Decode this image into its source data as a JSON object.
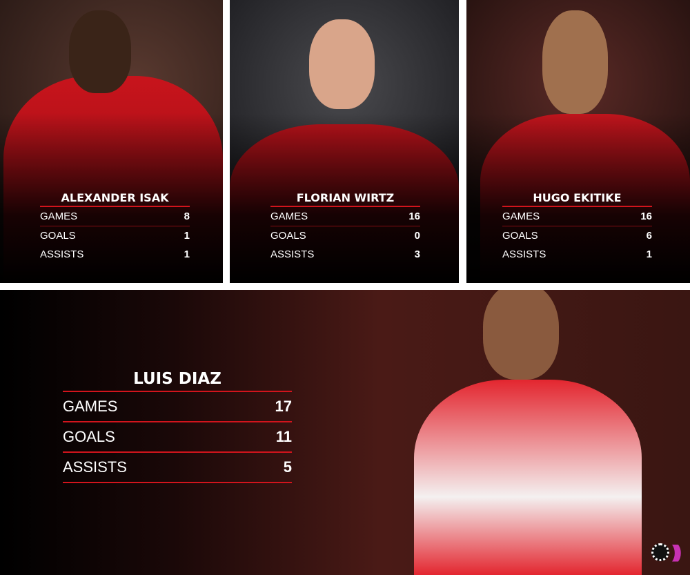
{
  "players": [
    {
      "name": "ALEXANDER ISAK",
      "stats": [
        {
          "label": "GAMES",
          "value": "8"
        },
        {
          "label": "GOALS",
          "value": "1"
        },
        {
          "label": "ASSISTS",
          "value": "1"
        }
      ]
    },
    {
      "name": "FLORIAN WIRTZ",
      "stats": [
        {
          "label": "GAMES",
          "value": "16"
        },
        {
          "label": "GOALS",
          "value": "0"
        },
        {
          "label": "ASSISTS",
          "value": "3"
        }
      ]
    },
    {
      "name": "HUGO EKITIKE",
      "stats": [
        {
          "label": "GAMES",
          "value": "16"
        },
        {
          "label": "GOALS",
          "value": "6"
        },
        {
          "label": "ASSISTS",
          "value": "1"
        }
      ]
    }
  ],
  "featured": {
    "name": "LUIS DIAZ",
    "stats": [
      {
        "label": "GAMES",
        "value": "17"
      },
      {
        "label": "GOALS",
        "value": "11"
      },
      {
        "label": "ASSISTS",
        "value": "5"
      }
    ]
  },
  "colors": {
    "accent": "#d2141c",
    "liverpool_red": "#b3121c",
    "bayern_red": "#e3262f",
    "logo_pink": "#c832b4"
  },
  "logo": {
    "icon": "football-broadcast-icon"
  }
}
